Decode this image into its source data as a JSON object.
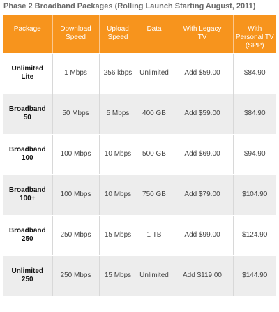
{
  "title": "Phase 2 Broadband Packages (Rolling Launch Starting August, 2011)",
  "columns": [
    [
      "Package"
    ],
    [
      "Download",
      "Speed"
    ],
    [
      "Upload",
      "Speed"
    ],
    [
      "Data"
    ],
    [
      "With Legacy",
      "TV"
    ],
    [
      "With",
      "Personal TV",
      "(SPP)"
    ]
  ],
  "rows": [
    {
      "package": [
        "Unlimited",
        "Lite"
      ],
      "download": "1 Mbps",
      "upload": "256 kbps",
      "data": "Unlimited",
      "legacy_tv": "Add $59.00",
      "personal_tv": "$84.90"
    },
    {
      "package": [
        "Broadband",
        "50"
      ],
      "download": "50 Mbps",
      "upload": "5 Mbps",
      "data": "400 GB",
      "legacy_tv": "Add $59.00",
      "personal_tv": "$84.90"
    },
    {
      "package": [
        "Broadband",
        "100"
      ],
      "download": "100 Mbps",
      "upload": "10 Mbps",
      "data": "500 GB",
      "legacy_tv": "Add $69.00",
      "personal_tv": "$94.90"
    },
    {
      "package": [
        "Broadband",
        "100+"
      ],
      "download": "100 Mbps",
      "upload": "10 Mbps",
      "data": "750 GB",
      "legacy_tv": "Add $79.00",
      "personal_tv": "$104.90"
    },
    {
      "package": [
        "Broadband",
        "250"
      ],
      "download": "250 Mbps",
      "upload": "15 Mbps",
      "data": "1 TB",
      "legacy_tv": "Add $99.00",
      "personal_tv": "$124.90"
    },
    {
      "package": [
        "Unlimited",
        "250"
      ],
      "download": "250 Mbps",
      "upload": "15 Mbps",
      "data": "Unlimited",
      "legacy_tv": "Add $119.00",
      "personal_tv": "$144.90"
    }
  ],
  "colors": {
    "header_bg": "#f7941d",
    "header_text": "#ffffff",
    "row_alt_bg": "#ededed"
  }
}
